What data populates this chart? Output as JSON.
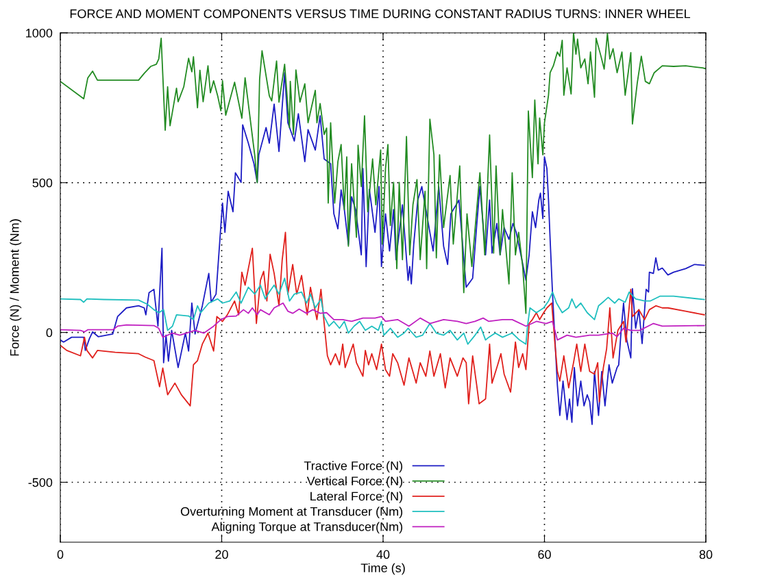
{
  "chart_data": {
    "type": "line",
    "title": "FORCE AND MOMENT COMPONENTS VERSUS TIME DURING CONSTANT RADIUS TURNS: INNER WHEEL",
    "xlabel": "Time (s)",
    "ylabel": "Force (N) / Moment (Nm)",
    "xlim": [
      0,
      80
    ],
    "ylim": [
      -700,
      1000
    ],
    "xticks": [
      0,
      20,
      40,
      60,
      80
    ],
    "yticks": [
      -500,
      0,
      500,
      1000
    ],
    "grid": true,
    "line_style": "solid",
    "legend": "bottom",
    "series": [
      {
        "name": "Tractive Force (N)",
        "color": "#1c1cc4",
        "x": [
          0,
          0.4,
          1.4,
          2.9,
          3.1,
          3.6,
          4.0,
          4.7,
          6.5,
          7.1,
          8.2,
          9.7,
          10.4,
          10.6,
          11.0,
          11.6,
          12.1,
          12.6,
          12.8,
          13.1,
          13.4,
          13.8,
          14.6,
          15.5,
          15.9,
          16.3,
          16.7,
          17.6,
          18.4,
          18.7,
          19.3,
          19.9,
          20.1,
          20.4,
          20.8,
          21.4,
          21.7,
          22.4,
          22.6,
          23.3,
          24.0,
          24.4,
          24.6,
          25.5,
          25.9,
          26.5,
          27.1,
          27.8,
          28.2,
          29.0,
          29.5,
          30.3,
          30.7,
          31.6,
          32.2,
          32.7,
          33.5,
          33.9,
          34.4,
          34.8,
          35.2,
          35.7,
          36.1,
          36.6,
          37.3,
          37.5,
          37.9,
          38.3,
          39.0,
          39.5,
          39.8,
          40.3,
          40.8,
          41.3,
          41.6,
          42.4,
          43.1,
          43.3,
          43.5,
          43.8,
          44.3,
          44.8,
          45.4,
          46.2,
          46.9,
          47.5,
          48.0,
          48.4,
          49.4,
          50.3,
          51.1,
          51.6,
          52.0,
          52.7,
          53.2,
          53.5,
          54.1,
          54.5,
          55.0,
          55.6,
          56.1,
          56.5,
          57.2,
          57.7,
          58.1,
          58.5,
          58.9,
          59.3,
          59.5,
          59.8,
          60.0,
          60.3,
          60.5,
          60.7,
          61.0,
          61.3,
          61.6,
          61.9,
          62.3,
          62.8,
          63.1,
          63.4,
          63.7,
          64.1,
          64.5,
          64.9,
          65.3,
          65.6,
          65.9,
          66.2,
          66.7,
          67.1,
          67.5,
          68.0,
          68.4,
          69.0,
          69.2,
          69.5,
          69.8,
          70.2,
          70.7,
          70.9,
          71.3,
          71.7,
          72.1,
          72.6,
          72.9,
          73.0,
          73.5,
          73.8,
          74.1,
          74.6,
          75.3,
          76.0,
          77.5,
          78.6,
          79.8
        ],
        "values": [
          -25,
          -32,
          -16,
          -16,
          -60,
          -21,
          2,
          -14,
          -5,
          53,
          82,
          89,
          82,
          59,
          133,
          144,
          21,
          281,
          -101,
          -9,
          -96,
          7,
          -117,
          -2,
          -62,
          98,
          -5,
          89,
          197,
          101,
          128,
          357,
          432,
          334,
          471,
          403,
          533,
          501,
          693,
          632,
          563,
          501,
          593,
          684,
          632,
          762,
          604,
          867,
          700,
          639,
          730,
          570,
          677,
          609,
          723,
          579,
          563,
          396,
          346,
          476,
          410,
          293,
          453,
          410,
          259,
          547,
          220,
          478,
          334,
          487,
          220,
          396,
          272,
          410,
          243,
          426,
          174,
          220,
          162,
          295,
          442,
          487,
          396,
          272,
          487,
          288,
          227,
          396,
          442,
          151,
          181,
          357,
          487,
          259,
          442,
          265,
          364,
          259,
          350,
          311,
          364,
          334,
          243,
          174,
          259,
          403,
          350,
          442,
          465,
          380,
          586,
          547,
          442,
          311,
          128,
          -25,
          -176,
          -277,
          -162,
          -291,
          -222,
          -300,
          -117,
          -245,
          -162,
          -245,
          -208,
          -231,
          -307,
          -130,
          -277,
          -130,
          -245,
          -108,
          -169,
          -117,
          -108,
          7,
          98,
          -25,
          -85,
          146,
          14,
          76,
          -37,
          144,
          135,
          201,
          197,
          249,
          208,
          215,
          192,
          201,
          213,
          227,
          224
        ]
      },
      {
        "name": "Vertical Force (N)",
        "color": "#228b22",
        "x": [
          0,
          2.9,
          3.4,
          4.0,
          4.6,
          9.7,
          10.4,
          11.2,
          11.9,
          12.2,
          12.5,
          13.0,
          13.3,
          13.6,
          14.4,
          14.6,
          15.3,
          15.9,
          16.3,
          16.5,
          17.0,
          17.3,
          17.7,
          18.3,
          18.6,
          19.0,
          19.5,
          19.9,
          20.1,
          20.5,
          21.6,
          22.5,
          22.9,
          24.1,
          24.4,
          24.7,
          25.0,
          25.9,
          26.2,
          26.8,
          27.1,
          27.8,
          28.4,
          28.5,
          28.9,
          29.2,
          29.7,
          30.3,
          30.7,
          31.6,
          31.8,
          32.2,
          32.7,
          33.0,
          33.2,
          33.5,
          34.0,
          34.4,
          34.8,
          35.2,
          35.5,
          35.7,
          36.1,
          36.7,
          36.9,
          37.3,
          37.7,
          38.1,
          38.7,
          39.1,
          39.7,
          39.9,
          40.3,
          40.6,
          40.9,
          41.3,
          41.7,
          42.0,
          42.4,
          42.9,
          43.3,
          43.7,
          44.2,
          44.6,
          45.2,
          45.4,
          45.8,
          46.3,
          46.6,
          47.0,
          47.5,
          48.3,
          48.7,
          49.5,
          50.0,
          50.4,
          51.0,
          52.0,
          52.6,
          53.2,
          53.7,
          54.0,
          54.5,
          54.8,
          55.6,
          56.0,
          56.4,
          56.8,
          57.3,
          57.7,
          58.0,
          58.5,
          58.8,
          59.2,
          59.4,
          59.8,
          60.0,
          60.5,
          60.7,
          61.1,
          61.6,
          61.9,
          62.2,
          62.4,
          62.8,
          63.3,
          63.6,
          63.9,
          64.1,
          64.5,
          65.0,
          65.4,
          65.7,
          66.2,
          66.4,
          67.0,
          67.4,
          67.8,
          68.1,
          68.5,
          69.0,
          69.6,
          70.0,
          70.4,
          70.7,
          70.9,
          71.5,
          72.0,
          72.5,
          73.0,
          73.6,
          74.6,
          76.0,
          77.5,
          79.6,
          80
        ],
        "values": [
          838,
          780,
          849,
          872,
          842,
          842,
          865,
          888,
          895,
          913,
          982,
          675,
          820,
          690,
          815,
          770,
          820,
          915,
          870,
          920,
          750,
          875,
          770,
          890,
          800,
          840,
          790,
          740,
          840,
          725,
          835,
          715,
          850,
          590,
          500,
          845,
          940,
          790,
          773,
          906,
          769,
          895,
          684,
          838,
          661,
          876,
          769,
          830,
          700,
          808,
          700,
          764,
          661,
          682,
          432,
          700,
          432,
          570,
          627,
          410,
          586,
          288,
          563,
          318,
          625,
          487,
          723,
          403,
          579,
          426,
          609,
          295,
          547,
          627,
          357,
          501,
          213,
          501,
          243,
          654,
          259,
          426,
          510,
          243,
          471,
          213,
          712,
          593,
          249,
          593,
          350,
          524,
          295,
          556,
          133,
          396,
          220,
          533,
          259,
          659,
          265,
          556,
          259,
          410,
          162,
          533,
          259,
          334,
          220,
          64,
          739,
          517,
          776,
          563,
          716,
          593,
          700,
          792,
          867,
          890,
          936,
          922,
          975,
          792,
          883,
          796,
          1000,
          929,
          979,
          883,
          913,
          830,
          936,
          785,
          982,
          922,
          879,
          998,
          913,
          947,
          867,
          936,
          792,
          872,
          934,
          696,
          833,
          922,
          838,
          830,
          867,
          890,
          888,
          890,
          883,
          880
        ]
      },
      {
        "name": "Lateral Force (N)",
        "color": "#e0201c",
        "x": [
          0,
          0.8,
          2.5,
          3.0,
          3.3,
          4.0,
          4.6,
          6.8,
          9.7,
          10.5,
          11.6,
          12.3,
          12.7,
          13.3,
          14.2,
          15.0,
          16.1,
          16.5,
          17.0,
          17.6,
          18.3,
          19.0,
          19.4,
          20.1,
          20.7,
          21.6,
          22.1,
          22.5,
          22.9,
          23.8,
          24.3,
          24.8,
          25.2,
          25.6,
          26.0,
          26.5,
          27.1,
          27.5,
          27.9,
          28.2,
          28.8,
          29.3,
          29.9,
          30.6,
          31.0,
          31.8,
          32.3,
          32.7,
          33.1,
          33.5,
          34.1,
          34.6,
          35.0,
          35.3,
          35.7,
          36.3,
          36.7,
          37.5,
          37.8,
          38.2,
          38.6,
          39.2,
          39.8,
          40.3,
          40.8,
          41.2,
          41.8,
          42.6,
          43.2,
          44.1,
          44.6,
          45.3,
          45.8,
          46.3,
          47.1,
          47.7,
          48.3,
          49.2,
          49.9,
          50.3,
          50.6,
          51.1,
          51.6,
          51.9,
          52.7,
          53.2,
          53.5,
          54.2,
          54.6,
          55.0,
          55.8,
          56.4,
          56.8,
          57.3,
          57.7,
          58.1,
          58.5,
          59.0,
          59.4,
          59.9,
          60.3,
          60.9,
          61.3,
          61.6,
          61.9,
          62.4,
          63.0,
          63.6,
          64.0,
          64.5,
          65.0,
          65.6,
          66.2,
          66.6,
          66.8,
          67.3,
          67.7,
          68.1,
          68.5,
          69.1,
          69.8,
          70.1,
          70.7,
          70.9,
          71.7,
          72.4,
          73.0,
          73.8,
          74.6,
          75.3,
          77.5,
          79.8
        ],
        "values": [
          -43,
          -60,
          -78,
          -16,
          -60,
          -85,
          -60,
          -66,
          -71,
          -82,
          -94,
          -181,
          -119,
          -208,
          -169,
          -208,
          -245,
          -108,
          -94,
          -39,
          -2,
          -62,
          53,
          37,
          59,
          105,
          59,
          201,
          158,
          281,
          30,
          174,
          204,
          105,
          261,
          197,
          89,
          243,
          334,
          128,
          227,
          128,
          190,
          59,
          151,
          43,
          144,
          30,
          -78,
          -108,
          -71,
          -108,
          -39,
          -117,
          -85,
          -39,
          -101,
          -146,
          -60,
          -108,
          -71,
          -124,
          -39,
          -124,
          -146,
          -71,
          -101,
          -176,
          -85,
          -169,
          -101,
          -146,
          -62,
          -146,
          -71,
          -185,
          -85,
          -146,
          -85,
          -101,
          -238,
          -78,
          -176,
          -238,
          -222,
          -39,
          -169,
          -108,
          -71,
          -139,
          -199,
          -32,
          -117,
          -71,
          -124,
          30,
          43,
          66,
          43,
          66,
          82,
          98,
          -39,
          -130,
          -162,
          -78,
          -185,
          -101,
          -39,
          -130,
          -39,
          -130,
          -139,
          -101,
          -231,
          -117,
          -55,
          82,
          -85,
          7,
          37,
          -32,
          144,
          53,
          76,
          43,
          76,
          89,
          82,
          82,
          71,
          59
        ]
      },
      {
        "name": "Overturning Moment at Transducer (Nm)",
        "color": "#1fbfbf",
        "x": [
          0,
          2.5,
          2.9,
          3.3,
          5.4,
          9.7,
          10.8,
          11.6,
          12.2,
          12.8,
          13.3,
          13.9,
          14.4,
          15.9,
          16.5,
          17.0,
          17.4,
          18.4,
          19.5,
          20.1,
          21.0,
          21.8,
          22.4,
          23.3,
          24.1,
          24.8,
          25.4,
          25.9,
          26.5,
          27.1,
          27.8,
          28.4,
          29.0,
          29.9,
          30.5,
          31.0,
          31.6,
          32.3,
          32.7,
          33.3,
          33.9,
          34.6,
          35.2,
          35.7,
          36.4,
          37.1,
          37.8,
          38.6,
          39.4,
          39.8,
          40.1,
          40.9,
          41.8,
          42.6,
          43.1,
          44.1,
          44.9,
          45.8,
          46.6,
          47.5,
          48.3,
          49.2,
          50.0,
          50.5,
          51.4,
          52.1,
          52.7,
          53.1,
          53.9,
          54.8,
          56.0,
          56.9,
          57.7,
          57.9,
          58.2,
          59.0,
          59.9,
          60.5,
          61.0,
          61.5,
          62.2,
          63.0,
          63.4,
          63.9,
          64.5,
          65.3,
          66.2,
          66.7,
          67.4,
          67.9,
          68.7,
          69.2,
          70.0,
          70.5,
          71.3,
          72.4,
          73.1,
          74.3,
          76.0,
          79.8
        ],
        "values": [
          112,
          110,
          101,
          112,
          110,
          108,
          94,
          76,
          66,
          76,
          7,
          21,
          59,
          55,
          43,
          89,
          66,
          98,
          112,
          98,
          105,
          135,
          98,
          151,
          128,
          158,
          112,
          135,
          158,
          128,
          181,
          105,
          128,
          135,
          98,
          128,
          82,
          112,
          53,
          21,
          37,
          14,
          37,
          -2,
          21,
          37,
          7,
          21,
          7,
          37,
          -9,
          14,
          -16,
          -2,
          14,
          -16,
          -9,
          30,
          -2,
          -9,
          7,
          -25,
          -2,
          -39,
          -9,
          18,
          -25,
          -16,
          -2,
          -16,
          -2,
          -25,
          -39,
          21,
          82,
          66,
          82,
          105,
          135,
          98,
          66,
          82,
          112,
          82,
          98,
          66,
          43,
          89,
          105,
          117,
          98,
          112,
          101,
          135,
          112,
          105,
          105,
          121,
          121,
          110
        ]
      },
      {
        "name": "Aligning Torque at Transducer(Nm)",
        "color": "#c01fc0",
        "x": [
          0,
          2.5,
          3.0,
          3.4,
          6.5,
          7.1,
          8.2,
          11.6,
          12.2,
          12.7,
          13.9,
          14.8,
          16.7,
          17.8,
          19.0,
          19.9,
          20.7,
          21.8,
          22.7,
          23.3,
          23.8,
          24.4,
          24.8,
          25.9,
          26.5,
          27.6,
          28.2,
          28.8,
          29.6,
          30.5,
          31.3,
          32.2,
          33.0,
          33.9,
          35.0,
          36.1,
          37.5,
          39.0,
          39.8,
          40.3,
          41.8,
          43.2,
          44.6,
          45.8,
          47.5,
          49.2,
          50.3,
          51.4,
          52.4,
          53.1,
          54.8,
          56.0,
          57.7,
          59.0,
          60.2,
          61.0,
          61.6,
          62.8,
          63.9,
          65.6,
          66.7,
          68.4,
          69.0,
          69.8,
          70.7,
          71.8,
          73.5,
          74.6,
          79.8
        ],
        "values": [
          9,
          7,
          2,
          9,
          9,
          21,
          25,
          23,
          14,
          -16,
          -2,
          -9,
          7,
          -2,
          21,
          43,
          53,
          55,
          76,
          64,
          82,
          59,
          76,
          59,
          82,
          98,
          71,
          64,
          78,
          64,
          76,
          64,
          66,
          43,
          43,
          37,
          48,
          48,
          53,
          37,
          43,
          21,
          48,
          30,
          43,
          37,
          30,
          37,
          48,
          37,
          43,
          43,
          21,
          37,
          30,
          37,
          -25,
          -9,
          -16,
          -9,
          -9,
          -2,
          -14,
          14,
          7,
          7,
          30,
          21,
          23
        ]
      }
    ]
  }
}
